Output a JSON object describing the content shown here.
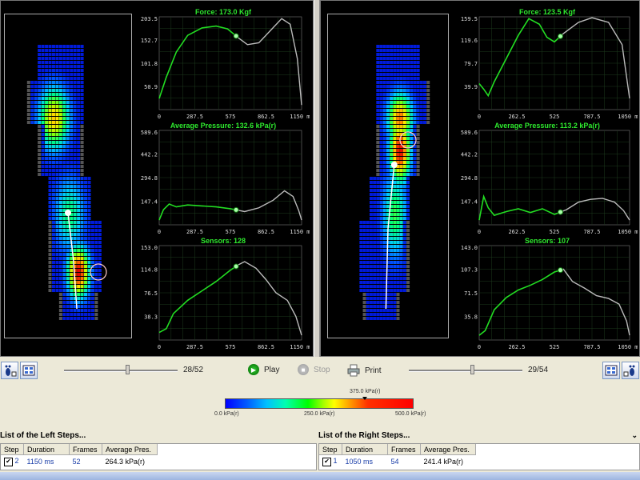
{
  "colors": {
    "pressure_low": "#0000ff",
    "pressure_high": "#ff0000",
    "curve_active": "#22dd22",
    "curve_rest": "#bbbbbb",
    "title_green": "#2ee82e"
  },
  "left": {
    "force": {
      "title": "Force: 173.0 Kgf",
      "yticks": [
        "203.5",
        "152.7",
        "101.8",
        "50.9"
      ],
      "xticks": [
        "0",
        "287.5",
        "575",
        "862.5",
        "1150 ms"
      ]
    },
    "pressure": {
      "title": "Average Pressure: 132.6 kPa(r)",
      "yticks": [
        "589.6",
        "442.2",
        "294.8",
        "147.4"
      ],
      "xticks": [
        "0",
        "287.5",
        "575",
        "862.5",
        "1150 ms"
      ]
    },
    "sensors": {
      "title": "Sensors: 128",
      "yticks": [
        "153.0",
        "114.8",
        "76.5",
        "38.3"
      ],
      "xticks": [
        "0",
        "287.5",
        "575",
        "862.5",
        "1150 ms"
      ]
    },
    "frame": "28/52",
    "frame_fraction": 0.54
  },
  "right": {
    "force": {
      "title": "Force: 123.5 Kgf",
      "yticks": [
        "159.5",
        "119.6",
        "79.7",
        "39.9"
      ],
      "xticks": [
        "0",
        "262.5",
        "525",
        "787.5",
        "1050 ms"
      ]
    },
    "pressure": {
      "title": "Average Pressure: 113.2 kPa(r)",
      "yticks": [
        "589.6",
        "442.2",
        "294.8",
        "147.4"
      ],
      "xticks": [
        "0",
        "262.5",
        "525",
        "787.5",
        "1050 ms"
      ]
    },
    "sensors": {
      "title": "Sensors: 107",
      "yticks": [
        "143.0",
        "107.3",
        "71.5",
        "35.8"
      ],
      "xticks": [
        "0",
        "262.5",
        "525",
        "787.5",
        "1050 ms"
      ]
    },
    "frame": "29/54",
    "frame_fraction": 0.54
  },
  "controls": {
    "play": "Play",
    "stop": "Stop",
    "print": "Print"
  },
  "legend": {
    "current": "375.0 kPa(r)",
    "min": "0.0 kPa(r)",
    "mid": "250.0 kPa(r)",
    "max": "500.0 kPa(r)"
  },
  "left_steps": {
    "header": "List of the Left Steps...",
    "columns": [
      "Step",
      "Duration",
      "Frames",
      "Average Pres."
    ],
    "rows": [
      {
        "checked": "✔",
        "step": "2",
        "duration": "1150 ms",
        "frames": "52",
        "avg": "264.3 kPa(r)"
      }
    ]
  },
  "right_steps": {
    "header": "List of the Right Steps...",
    "columns": [
      "Step",
      "Duration",
      "Frames",
      "Average Pres."
    ],
    "rows": [
      {
        "checked": "✔",
        "step": "1",
        "duration": "1050 ms",
        "frames": "54",
        "avg": "241.4 kPa(r)"
      }
    ]
  },
  "icons": {
    "foot_view": "foot-view-icon",
    "grid_view": "grid-view-icon",
    "play": "play-icon",
    "stop": "stop-icon",
    "print": "printer-icon",
    "collapse": "chevron-down-icon"
  }
}
